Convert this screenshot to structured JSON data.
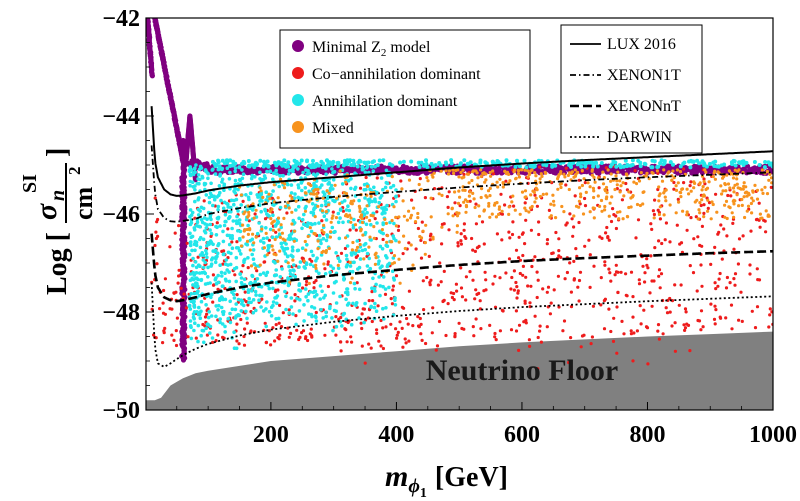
{
  "chart_data": {
    "type": "scatter",
    "xlabel": "m_{ϕ1} [GeV]",
    "xlabel_parts": {
      "main": "m",
      "sub1": "ϕ",
      "sub2": "1",
      "unit": "[GeV]"
    },
    "ylabel_parts": {
      "log": "Log [",
      "sigma": "σ",
      "sub": "n",
      "sup": "SI",
      "den": "cm",
      "den_exp": "2",
      "close": "]"
    },
    "xlim": [
      1,
      1000
    ],
    "ylim": [
      -50,
      -42
    ],
    "x_ticks": [
      200,
      400,
      600,
      800,
      1000
    ],
    "y_ticks": [
      -42,
      -44,
      -46,
      -48,
      -50
    ],
    "x_tick_labels": [
      "200",
      "400",
      "600",
      "800",
      "1000"
    ],
    "y_tick_labels": [
      "−42",
      "−44",
      "−46",
      "−48",
      "−50"
    ],
    "neutrino_floor_label": "Neutrino Floor",
    "neutrino_floor": {
      "x": [
        1,
        15,
        25,
        40,
        60,
        80,
        100,
        150,
        200,
        300,
        400,
        500,
        600,
        700,
        800,
        900,
        1000
      ],
      "y": [
        -49.8,
        -49.8,
        -49.75,
        -49.5,
        -49.35,
        -49.25,
        -49.2,
        -49.1,
        -49.0,
        -48.9,
        -48.8,
        -48.7,
        -48.62,
        -48.56,
        -48.5,
        -48.45,
        -48.4
      ]
    },
    "scatter_legend": [
      {
        "name": "Minimal Z",
        "sub": "2",
        "tail": " model",
        "color": "#800080"
      },
      {
        "name": "Co−annihilation dominant",
        "color": "#ee1c1c"
      },
      {
        "name": "Annihilation dominant",
        "color": "#22e6ea"
      },
      {
        "name": "Mixed",
        "color": "#f7931e"
      }
    ],
    "line_legend": [
      {
        "name": "LUX 2016",
        "dash": "solid"
      },
      {
        "name": "XENON1T",
        "dash": "dashdot"
      },
      {
        "name": "XENONnT",
        "dash": "dashed"
      },
      {
        "name": "DARWIN",
        "dash": "dotted"
      }
    ],
    "lines": [
      {
        "name": "LUX 2016",
        "dash": "solid",
        "width": 2.0,
        "x": [
          10,
          15,
          20,
          30,
          40,
          50,
          60,
          80,
          100,
          150,
          200,
          300,
          400,
          500,
          600,
          700,
          800,
          900,
          1000
        ],
        "y": [
          -43.8,
          -44.9,
          -45.25,
          -45.5,
          -45.6,
          -45.63,
          -45.62,
          -45.58,
          -45.52,
          -45.42,
          -45.35,
          -45.25,
          -45.15,
          -45.05,
          -44.97,
          -44.9,
          -44.84,
          -44.78,
          -44.72
        ]
      },
      {
        "name": "XENON1T",
        "dash": "dashdot",
        "width": 1.8,
        "x": [
          10,
          15,
          20,
          30,
          40,
          50,
          60,
          80,
          100,
          150,
          200,
          300,
          400,
          500,
          600,
          700,
          800,
          900,
          1000
        ],
        "y": [
          -44.6,
          -45.55,
          -45.9,
          -46.08,
          -46.15,
          -46.16,
          -46.14,
          -46.1,
          -46.0,
          -45.88,
          -45.78,
          -45.65,
          -45.55,
          -45.46,
          -45.38,
          -45.31,
          -45.25,
          -45.2,
          -45.15
        ]
      },
      {
        "name": "XENONnT",
        "dash": "dashed",
        "width": 2.6,
        "x": [
          10,
          15,
          20,
          30,
          40,
          50,
          60,
          80,
          100,
          150,
          200,
          300,
          400,
          500,
          600,
          700,
          800,
          900,
          1000
        ],
        "y": [
          -46.4,
          -47.2,
          -47.5,
          -47.7,
          -47.76,
          -47.78,
          -47.76,
          -47.7,
          -47.63,
          -47.5,
          -47.4,
          -47.25,
          -47.14,
          -47.04,
          -46.96,
          -46.9,
          -46.85,
          -46.8,
          -46.76
        ]
      },
      {
        "name": "DARWIN",
        "dash": "dotted",
        "width": 1.8,
        "x": [
          10,
          15,
          20,
          30,
          40,
          50,
          60,
          80,
          100,
          150,
          200,
          300,
          400,
          500,
          600,
          700,
          800,
          900,
          1000
        ],
        "y": [
          -47.4,
          -48.7,
          -49.05,
          -49.12,
          -49.05,
          -48.96,
          -48.88,
          -48.75,
          -48.65,
          -48.48,
          -48.36,
          -48.2,
          -48.08,
          -47.98,
          -47.9,
          -47.84,
          -47.78,
          -47.73,
          -47.68
        ]
      }
    ],
    "scatter_regions": [
      {
        "name": "Minimal Z2 model",
        "color": "#800080",
        "model": "minimal"
      },
      {
        "name": "Co-annihilation dominant",
        "color": "#ee1c1c",
        "model": "coann",
        "x_range": [
          10,
          1000
        ],
        "y_range": [
          -49.3,
          -45.1
        ],
        "count": 900
      },
      {
        "name": "Annihilation dominant",
        "color": "#22e6ea",
        "model": "ann",
        "x_range": [
          70,
          400
        ],
        "y_range": [
          -48.8,
          -44.9
        ],
        "count": 1100
      },
      {
        "name": "Mixed",
        "color": "#f7931e",
        "model": "mixed",
        "x_range": [
          100,
          1000
        ],
        "y_range": [
          -47.6,
          -45.0
        ],
        "count": 700
      }
    ]
  }
}
